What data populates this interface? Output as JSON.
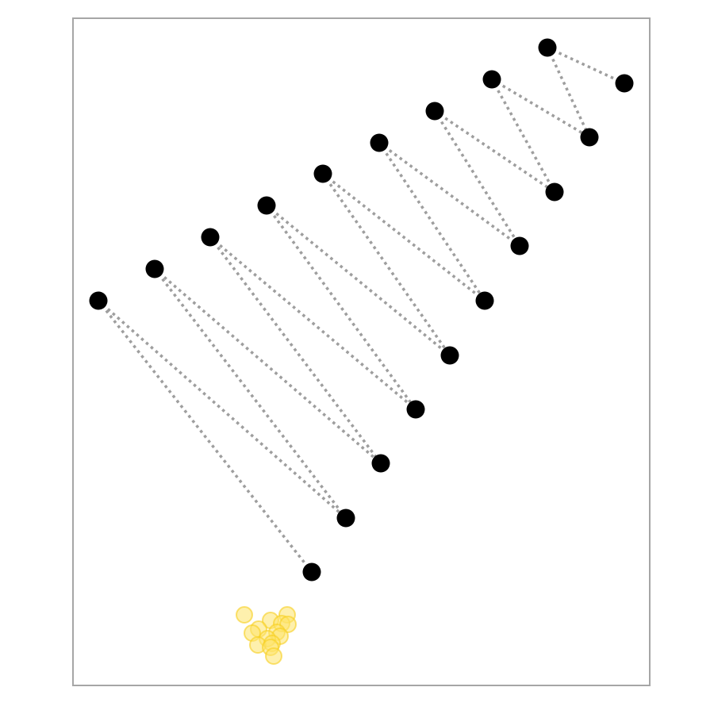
{
  "colors": {
    "background": "#ffffff",
    "frame": "#a6a6a6",
    "edge": "#9e9e9e",
    "node": "#000000",
    "cluster_fill": "#fde36a",
    "cluster_stroke": "#f7cf1e"
  },
  "graph": {
    "upper_row": [
      "u1",
      "u2",
      "u3",
      "u4",
      "u5",
      "u6",
      "u7",
      "u8",
      "u9"
    ],
    "lower_row": [
      "l1",
      "l2",
      "l3",
      "l4",
      "l5",
      "l6",
      "l7",
      "l8",
      "l9"
    ],
    "edges": [
      [
        "u1",
        "l1"
      ],
      [
        "u1",
        "l2"
      ],
      [
        "u2",
        "l2"
      ],
      [
        "u2",
        "l3"
      ],
      [
        "u3",
        "l3"
      ],
      [
        "u3",
        "l4"
      ],
      [
        "u4",
        "l4"
      ],
      [
        "u4",
        "l5"
      ],
      [
        "u5",
        "l5"
      ],
      [
        "u5",
        "l6"
      ],
      [
        "u6",
        "l6"
      ],
      [
        "u6",
        "l7"
      ],
      [
        "u7",
        "l7"
      ],
      [
        "u7",
        "l8"
      ],
      [
        "u8",
        "l8"
      ],
      [
        "u8",
        "l9"
      ],
      [
        "u9",
        "l9"
      ]
    ],
    "cluster_point_count": 14
  }
}
